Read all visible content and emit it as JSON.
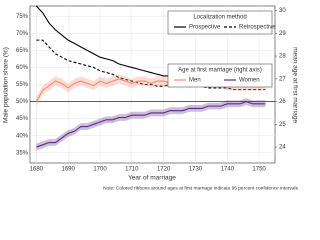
{
  "chart_data": {
    "type": "line",
    "x_label": "Year of marriage",
    "y_label": "Male population share (%)",
    "y2_label": "mean age at first marriage",
    "note": "Note: Colored ribbons around ages at first marriage indicate 95 percent confidence intervals",
    "legend_titles": {
      "y": "Localization method",
      "y2": "Age at first marriage (right axis)"
    },
    "legend": "top-right",
    "hline": 50,
    "x": [
      1680,
      1682,
      1684,
      1686,
      1688,
      1690,
      1692,
      1694,
      1696,
      1698,
      1700,
      1702,
      1704,
      1706,
      1708,
      1710,
      1712,
      1714,
      1716,
      1718,
      1720,
      1722,
      1724,
      1726,
      1728,
      1730,
      1732,
      1734,
      1736,
      1738,
      1740,
      1742,
      1744,
      1746,
      1748,
      1750,
      1752
    ],
    "xlim": [
      1678,
      1755
    ],
    "xticks": [
      1680,
      1690,
      1700,
      1710,
      1720,
      1730,
      1740,
      1750
    ],
    "ylim": [
      32,
      78
    ],
    "yticks": [
      {
        "value": 35,
        "label": "35%"
      },
      {
        "value": 40,
        "label": "40%"
      },
      {
        "value": 45,
        "label": "45%"
      },
      {
        "value": 50,
        "label": "50%"
      },
      {
        "value": 55,
        "label": "55%"
      },
      {
        "value": 60,
        "label": "60%"
      },
      {
        "value": 65,
        "label": "65%"
      },
      {
        "value": 70,
        "label": "70%"
      },
      {
        "value": 75,
        "label": "75%"
      }
    ],
    "y2lim": [
      23.3,
      30.2
    ],
    "y2ticks": [
      24,
      25,
      26,
      27,
      28,
      29,
      30
    ],
    "series": [
      {
        "name": "Prospective",
        "color": "#000000",
        "dash": false,
        "values": [
          78,
          76,
          73,
          71,
          69.5,
          68,
          67,
          66,
          65,
          64,
          63,
          62.5,
          62,
          61,
          60.5,
          60,
          59.5,
          59,
          58.5,
          58,
          57.5,
          57.5,
          58,
          58,
          58,
          58.5,
          59,
          59,
          59,
          59.5,
          59.5,
          59.5,
          59,
          59,
          59,
          58.5,
          58.5
        ]
      },
      {
        "name": "Retrospective",
        "color": "#000000",
        "dash": true,
        "values": [
          68,
          68,
          66,
          64,
          63,
          62,
          61.5,
          61,
          60.5,
          60,
          59,
          58.5,
          58,
          57,
          56.5,
          56,
          55.5,
          55,
          55,
          54.5,
          54.5,
          55,
          55.5,
          55,
          55,
          54.5,
          54.5,
          54,
          54,
          54,
          54,
          53.5,
          53.5,
          53.5,
          53.5,
          53.5,
          53.5
        ]
      },
      {
        "name": "Men",
        "color": "#f08c73",
        "axis": "y2",
        "band": 0.2,
        "values": [
          26.0,
          26.5,
          26.7,
          26.9,
          26.8,
          26.6,
          26.8,
          26.9,
          26.8,
          26.7,
          26.9,
          26.8,
          26.9,
          27.0,
          26.9,
          26.8,
          26.9,
          26.9,
          26.8,
          26.9,
          26.9,
          26.8,
          26.9,
          26.9,
          26.8,
          26.9,
          27.0,
          26.9,
          26.8,
          26.8,
          26.7,
          26.7,
          26.7,
          26.7,
          26.7,
          26.7,
          26.7
        ]
      },
      {
        "name": "Women",
        "color": "#5b2a86",
        "axis": "y2",
        "band": 0.15,
        "values": [
          24.0,
          24.1,
          24.2,
          24.2,
          24.4,
          24.6,
          24.7,
          24.9,
          24.9,
          25.0,
          25.1,
          25.2,
          25.2,
          25.3,
          25.3,
          25.4,
          25.4,
          25.4,
          25.5,
          25.5,
          25.5,
          25.6,
          25.6,
          25.6,
          25.7,
          25.7,
          25.7,
          25.8,
          25.8,
          25.8,
          25.9,
          25.9,
          25.9,
          26.0,
          25.9,
          25.9,
          25.9
        ]
      }
    ]
  }
}
